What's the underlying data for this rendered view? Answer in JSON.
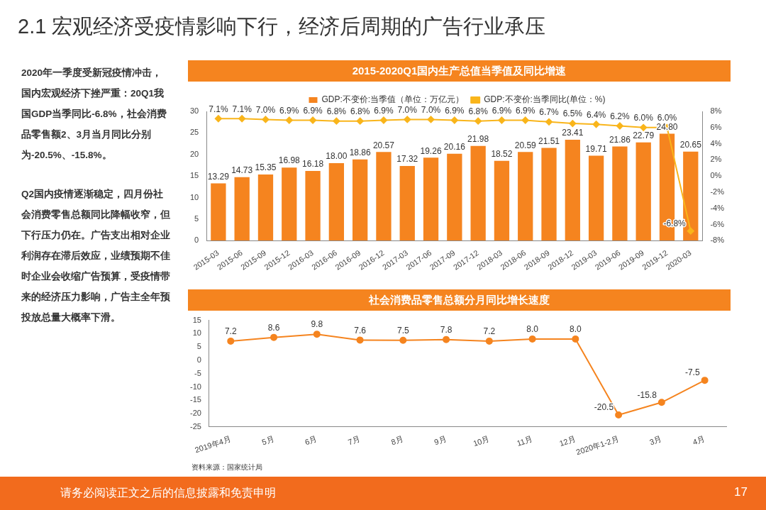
{
  "chart_data": [
    {
      "type": "other",
      "title": "2.1 宏观经济受疫情影响下行，经济后周期的广告行业承压",
      "annotations": [
        "2020年一季度受新冠疫情冲击，国内宏观经济下挫严重：20Q1我国GDP当季同比-6.8%，社会消费品零售额2、3月当月同比分别为-20.5%、-15.8%。",
        "Q2国内疫情逐渐稳定，四月份社会消费零售总额同比降幅收窄，但下行压力仍在。广告支出相对企业利润存在滞后效应，业绩预期不佳时企业会收缩广告预算，受疫情带来的经济压力影响，广告主全年预投放总量大概率下滑。",
        "请务必阅读正文之后的信息披露和免责申明",
        "17"
      ]
    },
    {
      "type": "bar",
      "title": "2015-2020Q1国内生产总值当季值及同比增速",
      "categories": [
        "2015-03",
        "2015-06",
        "2015-09",
        "2015-12",
        "2016-03",
        "2016-06",
        "2016-09",
        "2016-12",
        "2017-03",
        "2017-06",
        "2017-09",
        "2017-12",
        "2018-03",
        "2018-06",
        "2018-09",
        "2018-12",
        "2019-03",
        "2019-06",
        "2019-09",
        "2019-12",
        "2020-03"
      ],
      "series": [
        {
          "name": "GDP:不变价:当季值（单位：万亿元）",
          "type": "bar",
          "color": "#f5841f",
          "values": [
            13.29,
            14.73,
            15.35,
            16.98,
            16.18,
            18.0,
            18.86,
            20.57,
            17.32,
            19.26,
            20.16,
            21.98,
            18.52,
            20.59,
            21.51,
            23.41,
            19.71,
            21.86,
            22.79,
            24.8,
            20.65
          ],
          "value_labels": [
            "13.29",
            "14.73",
            "15.35",
            "16.98",
            "16.18",
            "18.00",
            "18.86",
            "20.57",
            "17.32",
            "19.26",
            "20.16",
            "21.98",
            "18.52",
            "20.59",
            "21.51",
            "23.41",
            "19.71",
            "21.86",
            "22.79",
            "24.80",
            "20.65"
          ]
        },
        {
          "name": "GDP:不变价:当季同比(单位：%)",
          "type": "line",
          "axis": "y2",
          "color": "#f9b51b",
          "values": [
            7.1,
            7.1,
            7.0,
            6.9,
            6.9,
            6.8,
            6.8,
            6.9,
            7.0,
            7.0,
            6.9,
            6.8,
            6.9,
            6.9,
            6.7,
            6.5,
            6.4,
            6.2,
            6.0,
            6.0,
            -6.8
          ],
          "value_labels": [
            "7.1%",
            "7.1%",
            "7.0%",
            "6.9%",
            "6.9%",
            "6.8%",
            "6.8%",
            "6.9%",
            "7.0%",
            "7.0%",
            "6.9%",
            "6.8%",
            "6.9%",
            "6.9%",
            "6.7%",
            "6.5%",
            "6.4%",
            "6.2%",
            "6.0%",
            "6.0%",
            "-6.8%"
          ]
        }
      ],
      "ylim": [
        0,
        30
      ],
      "yticks": [
        0,
        5,
        10,
        15,
        20,
        25,
        30
      ],
      "y2lim": [
        -8,
        8
      ],
      "y2ticks": [
        {
          "value": -8,
          "label": "-8%"
        },
        {
          "value": -6,
          "label": "-6%"
        },
        {
          "value": -4,
          "label": "-4%"
        },
        {
          "value": -2,
          "label": "-2%"
        },
        {
          "value": 0,
          "label": "0%"
        },
        {
          "value": 2,
          "label": "2%"
        },
        {
          "value": 4,
          "label": "4%"
        },
        {
          "value": 6,
          "label": "6%"
        },
        {
          "value": 8,
          "label": "8%"
        }
      ],
      "legend": "top",
      "marker": "diamond"
    },
    {
      "type": "line",
      "title": "社会消费品零售总额分月同比增长速度",
      "categories": [
        "2019年4月",
        "5月",
        "6月",
        "7月",
        "8月",
        "9月",
        "10月",
        "11月",
        "12月",
        "2020年1-2月",
        "3月",
        "4月"
      ],
      "values": [
        7.2,
        8.6,
        9.8,
        7.6,
        7.5,
        7.8,
        7.2,
        8.0,
        8.0,
        -20.5,
        -15.8,
        -7.5
      ],
      "value_labels": [
        "7.2",
        "8.6",
        "9.8",
        "7.6",
        "7.5",
        "7.8",
        "7.2",
        "8.0",
        "8.0",
        "-20.5",
        "-15.8",
        "-7.5"
      ],
      "color": "#f5841f",
      "marker": "circle",
      "ylim": [
        -25,
        15
      ],
      "yticks": [
        -25,
        -20,
        -15,
        -10,
        -5,
        0,
        5,
        10,
        15
      ],
      "annotations": [
        "资料来源：国家统计局"
      ]
    }
  ]
}
